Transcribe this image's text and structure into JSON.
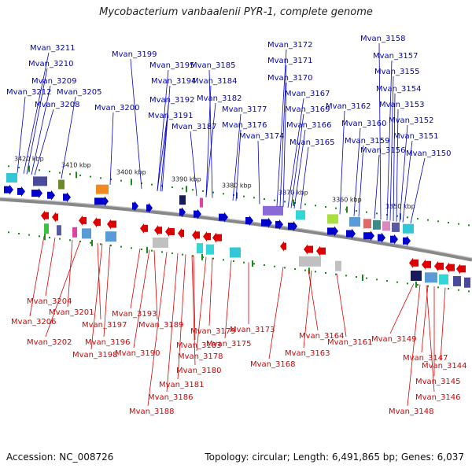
{
  "title": "Mycobacterium vanbaalenii PYR-1, complete genome",
  "footer": {
    "accession": "Accession: NC_008726",
    "summary": "Topology: circular; Length: 6,491,865 bp; Genes: 6,037"
  },
  "colors": {
    "forward": "#0000cc",
    "reverse": "#dd0000",
    "backbone": "#888888",
    "tick": "#1a8a1a"
  },
  "kbp_ticks": [
    "3420 kbp",
    "3410 kbp",
    "3400 kbp",
    "3390 kbp",
    "3380 kbp",
    "3370 kbp",
    "3360 kbp",
    "3350 kbp"
  ],
  "forward_genes": [
    "Mvan_3211",
    "Mvan_3210",
    "Mvan_3209",
    "Mvan_3212",
    "Mvan_3205",
    "Mvan_3208",
    "Mvan_3199",
    "Mvan_3195",
    "Mvan_3194",
    "Mvan_3200",
    "Mvan_3192",
    "Mvan_3191",
    "Mvan_3185",
    "Mvan_3184",
    "Mvan_3182",
    "Mvan_3187",
    "Mvan_3177",
    "Mvan_3176",
    "Mvan_3174",
    "Mvan_3172",
    "Mvan_3171",
    "Mvan_3170",
    "Mvan_3167",
    "Mvan_3169",
    "Mvan_3166",
    "Mvan_3165",
    "Mvan_3162",
    "Mvan_3160",
    "Mvan_3159",
    "Mvan_3158",
    "Mvan_3157",
    "Mvan_3155",
    "Mvan_3154",
    "Mvan_3153",
    "Mvan_3152",
    "Mvan_3156",
    "Mvan_3151",
    "Mvan_3150"
  ],
  "reverse_genes": [
    "Mvan_3204",
    "Mvan_3206",
    "Mvan_3201",
    "Mvan_3202",
    "Mvan_3197",
    "Mvan_3196",
    "Mvan_3198",
    "Mvan_3193",
    "Mvan_3189",
    "Mvan_3190",
    "Mvan_3179",
    "Mvan_3183",
    "Mvan_3178",
    "Mvan_3180",
    "Mvan_3181",
    "Mvan_3186",
    "Mvan_3188",
    "Mvan_3173",
    "Mvan_3175",
    "Mvan_3168",
    "Mvan_3164",
    "Mvan_3163",
    "Mvan_3161",
    "Mvan_3149",
    "Mvan_3147",
    "Mvan_3144",
    "Mvan_3145",
    "Mvan_3146",
    "Mvan_3148"
  ]
}
